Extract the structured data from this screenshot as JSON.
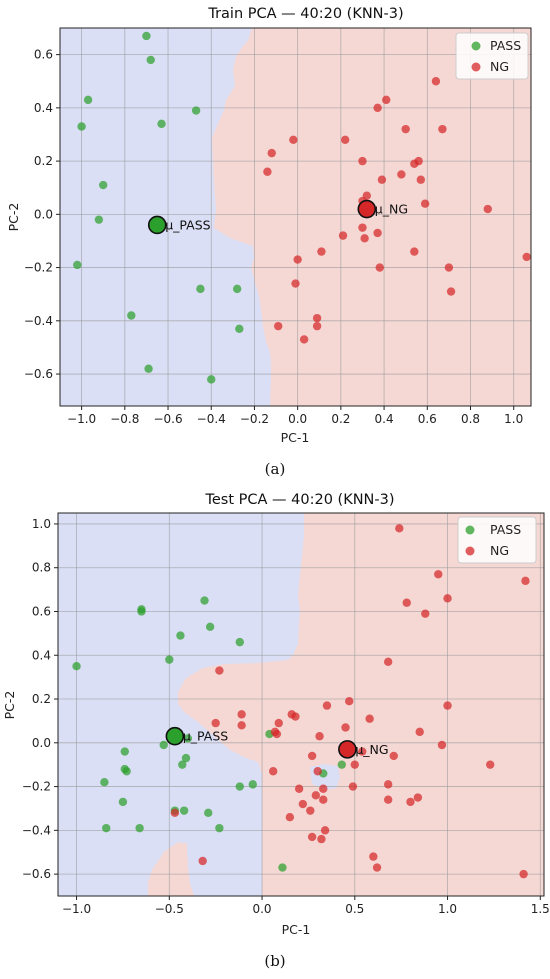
{
  "chart_data": [
    {
      "type": "scatter",
      "panel_label": "(a)",
      "title": "Train PCA — 40:20 (KNN-3)",
      "xlabel": "PC-1",
      "ylabel": "PC-2",
      "xlim": [
        -1.1,
        1.08
      ],
      "ylim": [
        -0.72,
        0.7
      ],
      "xticks": [
        -1.0,
        -0.8,
        -0.6,
        -0.4,
        -0.2,
        0.0,
        0.2,
        0.4,
        0.6,
        0.8,
        1.0
      ],
      "xtick_labels": [
        "−1.0",
        "−0.8",
        "−0.6",
        "−0.4",
        "−0.2",
        "0.0",
        "0.2",
        "0.4",
        "0.6",
        "0.8",
        "1.0"
      ],
      "yticks": [
        -0.6,
        -0.4,
        -0.2,
        0.0,
        0.2,
        0.4,
        0.6
      ],
      "ytick_labels": [
        "−0.6",
        "−0.4",
        "−0.2",
        "0.0",
        "0.2",
        "0.4",
        "0.6"
      ],
      "grid": true,
      "legend": {
        "placement": "top-right",
        "entries": [
          "PASS",
          "NG"
        ]
      },
      "colors": {
        "pass": "#2ca02c",
        "ng": "#d62728",
        "region_pass": "#dadff5",
        "region_ng": "#f5d8d4"
      },
      "decision_boundary_x": [
        [
          0.7,
          -0.21
        ],
        [
          0.65,
          -0.16
        ],
        [
          0.58,
          -0.12
        ],
        [
          0.5,
          -0.09
        ],
        [
          0.42,
          -0.08
        ],
        [
          0.34,
          -0.07
        ],
        [
          0.28,
          -0.06
        ],
        [
          0.22,
          -0.09
        ],
        [
          0.18,
          -0.13
        ],
        [
          0.12,
          -0.16
        ],
        [
          0.06,
          -0.2
        ],
        [
          0.02,
          -0.22
        ],
        [
          -0.04,
          -0.23
        ],
        [
          -0.1,
          -0.22
        ],
        [
          -0.16,
          -0.19
        ],
        [
          -0.22,
          -0.17
        ],
        [
          -0.28,
          -0.19
        ],
        [
          -0.34,
          -0.2
        ],
        [
          -0.4,
          -0.19
        ],
        [
          -0.46,
          -0.18
        ],
        [
          -0.52,
          -0.17
        ],
        [
          -0.58,
          -0.16
        ],
        [
          -0.64,
          -0.16
        ],
        [
          -0.7,
          -0.16
        ]
      ],
      "series": [
        {
          "name": "PASS",
          "points": [
            [
              -0.7,
              0.67
            ],
            [
              -0.68,
              0.58
            ],
            [
              -0.97,
              0.43
            ],
            [
              -0.47,
              0.39
            ],
            [
              -0.63,
              0.34
            ],
            [
              -1.0,
              0.33
            ],
            [
              -0.9,
              0.11
            ],
            [
              -0.92,
              -0.02
            ],
            [
              -1.02,
              -0.19
            ],
            [
              -0.45,
              -0.28
            ],
            [
              -0.28,
              -0.28
            ],
            [
              -0.77,
              -0.38
            ],
            [
              -0.27,
              -0.43
            ],
            [
              -0.69,
              -0.58
            ],
            [
              -0.4,
              -0.62
            ]
          ]
        },
        {
          "name": "NG",
          "points": [
            [
              0.64,
              0.5
            ],
            [
              0.41,
              0.43
            ],
            [
              0.37,
              0.4
            ],
            [
              0.5,
              0.32
            ],
            [
              0.67,
              0.32
            ],
            [
              -0.02,
              0.28
            ],
            [
              0.22,
              0.28
            ],
            [
              -0.12,
              0.23
            ],
            [
              0.3,
              0.2
            ],
            [
              0.56,
              0.2
            ],
            [
              0.54,
              0.19
            ],
            [
              -0.14,
              0.16
            ],
            [
              0.48,
              0.15
            ],
            [
              0.39,
              0.13
            ],
            [
              0.57,
              0.13
            ],
            [
              0.32,
              0.07
            ],
            [
              0.3,
              0.05
            ],
            [
              0.59,
              0.04
            ],
            [
              0.88,
              0.02
            ],
            [
              0.3,
              -0.05
            ],
            [
              0.37,
              -0.07
            ],
            [
              0.21,
              -0.08
            ],
            [
              0.31,
              -0.09
            ],
            [
              0.11,
              -0.14
            ],
            [
              0.54,
              -0.14
            ],
            [
              1.06,
              -0.16
            ],
            [
              0.0,
              -0.17
            ],
            [
              0.38,
              -0.2
            ],
            [
              0.7,
              -0.2
            ],
            [
              -0.01,
              -0.26
            ],
            [
              0.71,
              -0.29
            ],
            [
              0.09,
              -0.39
            ],
            [
              -0.09,
              -0.42
            ],
            [
              0.09,
              -0.42
            ],
            [
              0.03,
              -0.47
            ]
          ]
        }
      ],
      "centroids": [
        {
          "label": "μ_PASS",
          "class": "PASS",
          "x": -0.65,
          "y": -0.04
        },
        {
          "label": "μ_NG",
          "class": "NG",
          "x": 0.32,
          "y": 0.02
        }
      ]
    },
    {
      "type": "scatter",
      "panel_label": "(b)",
      "title": "Test  PCA — 40:20 (KNN-3)",
      "xlabel": "PC-1",
      "ylabel": "PC-2",
      "xlim": [
        -1.1,
        1.52
      ],
      "ylim": [
        -0.7,
        1.05
      ],
      "xticks": [
        -1.0,
        -0.5,
        0.0,
        0.5,
        1.0,
        1.5
      ],
      "xtick_labels": [
        "−1.0",
        "−0.5",
        "0.0",
        "0.5",
        "1.0",
        "1.5"
      ],
      "yticks": [
        -0.6,
        -0.4,
        -0.2,
        0.0,
        0.2,
        0.4,
        0.6,
        0.8,
        1.0
      ],
      "ytick_labels": [
        "−0.6",
        "−0.4",
        "−0.2",
        "0.0",
        "0.2",
        "0.4",
        "0.6",
        "0.8",
        "1.0"
      ],
      "grid": true,
      "legend": {
        "placement": "top-right",
        "entries": [
          "PASS",
          "NG"
        ]
      },
      "colors": {
        "pass": "#2ca02c",
        "ng": "#d62728",
        "region_pass": "#dadff5",
        "region_ng": "#f5d8d4"
      },
      "series": [
        {
          "name": "PASS",
          "points": [
            [
              -0.31,
              0.65
            ],
            [
              -0.65,
              0.61
            ],
            [
              -0.65,
              0.6
            ],
            [
              -0.28,
              0.53
            ],
            [
              -0.44,
              0.49
            ],
            [
              -0.12,
              0.46
            ],
            [
              -1.0,
              0.35
            ],
            [
              -0.5,
              0.38
            ],
            [
              -0.53,
              -0.01
            ],
            [
              -0.4,
              0.02
            ],
            [
              -0.74,
              -0.04
            ],
            [
              -0.41,
              -0.07
            ],
            [
              -0.43,
              -0.1
            ],
            [
              -0.74,
              -0.12
            ],
            [
              -0.73,
              -0.13
            ],
            [
              0.04,
              0.04
            ],
            [
              -0.85,
              -0.18
            ],
            [
              -0.05,
              -0.19
            ],
            [
              -0.12,
              -0.2
            ],
            [
              -0.75,
              -0.27
            ],
            [
              -0.42,
              -0.31
            ],
            [
              -0.29,
              -0.32
            ],
            [
              -0.47,
              -0.31
            ],
            [
              -0.84,
              -0.39
            ],
            [
              -0.66,
              -0.39
            ],
            [
              -0.23,
              -0.39
            ],
            [
              0.33,
              -0.14
            ],
            [
              0.43,
              -0.1
            ],
            [
              0.11,
              -0.57
            ]
          ]
        },
        {
          "name": "NG",
          "points": [
            [
              0.74,
              0.98
            ],
            [
              0.95,
              0.77
            ],
            [
              1.42,
              0.74
            ],
            [
              1.0,
              0.66
            ],
            [
              0.78,
              0.64
            ],
            [
              0.88,
              0.59
            ],
            [
              0.68,
              0.37
            ],
            [
              -0.23,
              0.33
            ],
            [
              -0.11,
              0.13
            ],
            [
              0.18,
              0.12
            ],
            [
              0.35,
              0.17
            ],
            [
              -0.25,
              0.09
            ],
            [
              0.09,
              0.09
            ],
            [
              -0.11,
              0.08
            ],
            [
              0.16,
              0.13
            ],
            [
              0.47,
              0.19
            ],
            [
              0.58,
              0.11
            ],
            [
              0.85,
              0.05
            ],
            [
              1.0,
              0.17
            ],
            [
              0.08,
              0.04
            ],
            [
              0.07,
              0.05
            ],
            [
              0.31,
              0.03
            ],
            [
              0.45,
              0.07
            ],
            [
              0.97,
              -0.01
            ],
            [
              0.54,
              -0.04
            ],
            [
              0.27,
              -0.06
            ],
            [
              0.5,
              -0.1
            ],
            [
              0.3,
              -0.13
            ],
            [
              0.71,
              -0.06
            ],
            [
              0.06,
              -0.13
            ],
            [
              0.68,
              -0.19
            ],
            [
              1.23,
              -0.1
            ],
            [
              0.49,
              -0.2
            ],
            [
              0.2,
              -0.21
            ],
            [
              0.33,
              -0.21
            ],
            [
              0.29,
              -0.24
            ],
            [
              0.33,
              -0.26
            ],
            [
              0.68,
              -0.26
            ],
            [
              0.84,
              -0.25
            ],
            [
              0.8,
              -0.27
            ],
            [
              0.22,
              -0.28
            ],
            [
              0.26,
              -0.31
            ],
            [
              -0.47,
              -0.32
            ],
            [
              0.15,
              -0.34
            ],
            [
              0.34,
              -0.4
            ],
            [
              0.27,
              -0.43
            ],
            [
              0.32,
              -0.44
            ],
            [
              0.6,
              -0.52
            ],
            [
              0.62,
              -0.57
            ],
            [
              -0.32,
              -0.54
            ],
            [
              1.41,
              -0.6
            ]
          ]
        }
      ],
      "centroids": [
        {
          "label": "μ_PASS",
          "class": "PASS",
          "x": -0.47,
          "y": 0.03
        },
        {
          "label": "μ_NG",
          "class": "NG",
          "x": 0.46,
          "y": -0.03
        }
      ]
    }
  ]
}
